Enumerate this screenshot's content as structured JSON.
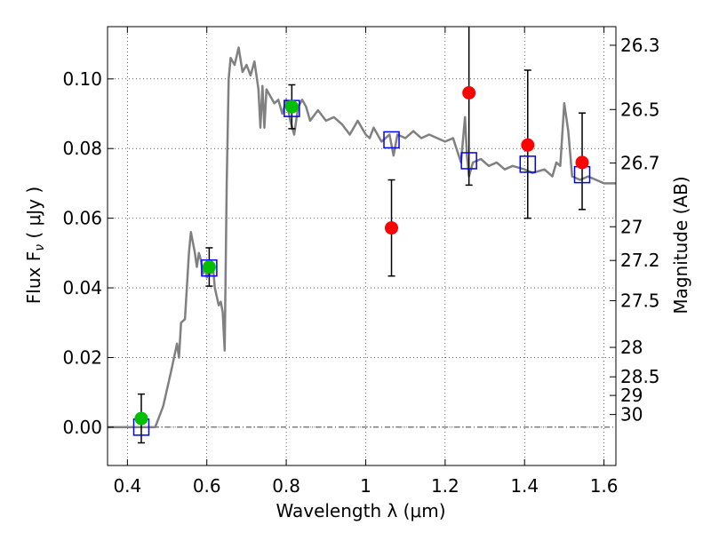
{
  "chart_data": {
    "type": "scatter",
    "xlabel": "Wavelength  λ (μm)",
    "ylabel": "Flux  F",
    "ylabel_sub": "ν",
    "ylabel_unit": " ( μJy )",
    "y2label": "Magnitude (AB)",
    "xlim": [
      0.35,
      1.63
    ],
    "ylim": [
      -0.011,
      0.115
    ],
    "grid": true,
    "x_ticks": [
      0.4,
      0.6,
      0.8,
      1.0,
      1.2,
      1.4,
      1.6
    ],
    "x_tick_labels": [
      "0.4",
      "0.6",
      "0.8",
      "1",
      "1.2",
      "1.4",
      "1.6"
    ],
    "y_ticks": [
      0.0,
      0.02,
      0.04,
      0.06,
      0.08,
      0.1
    ],
    "y_tick_labels": [
      "0.00",
      "0.02",
      "0.04",
      "0.06",
      "0.08",
      "0.10"
    ],
    "mag_ticks": [
      26.3,
      26.5,
      26.7,
      27,
      27.2,
      27.5,
      28,
      28.5,
      29,
      30
    ],
    "mag_tick_labels": [
      "26.3",
      "26.5",
      "26.7",
      "27",
      "27.2",
      "27.5",
      "28",
      "28.5",
      "29",
      "30"
    ],
    "model_sed": {
      "color": "#808080",
      "x": [
        0.35,
        0.47,
        0.49,
        0.51,
        0.525,
        0.53,
        0.535,
        0.545,
        0.555,
        0.56,
        0.57,
        0.575,
        0.58,
        0.585,
        0.59,
        0.595,
        0.6,
        0.605,
        0.61,
        0.615,
        0.62,
        0.63,
        0.635,
        0.64,
        0.645,
        0.65,
        0.655,
        0.66,
        0.67,
        0.68,
        0.69,
        0.7,
        0.71,
        0.72,
        0.73,
        0.735,
        0.74,
        0.745,
        0.75,
        0.76,
        0.77,
        0.78,
        0.79,
        0.8,
        0.81,
        0.82,
        0.83,
        0.84,
        0.85,
        0.86,
        0.88,
        0.9,
        0.92,
        0.94,
        0.96,
        0.98,
        1.0,
        1.01,
        1.02,
        1.04,
        1.06,
        1.07,
        1.08,
        1.1,
        1.12,
        1.14,
        1.16,
        1.18,
        1.2,
        1.22,
        1.24,
        1.25,
        1.255,
        1.26,
        1.27,
        1.29,
        1.31,
        1.33,
        1.35,
        1.37,
        1.4,
        1.42,
        1.45,
        1.47,
        1.48,
        1.49,
        1.5,
        1.51,
        1.52,
        1.54,
        1.56,
        1.58,
        1.6,
        1.63
      ],
      "y": [
        0.0,
        0.0,
        0.006,
        0.016,
        0.024,
        0.02,
        0.03,
        0.031,
        0.05,
        0.056,
        0.05,
        0.046,
        0.05,
        0.048,
        0.044,
        0.046,
        0.043,
        0.045,
        0.044,
        0.047,
        0.04,
        0.035,
        0.036,
        0.033,
        0.022,
        0.07,
        0.1,
        0.106,
        0.104,
        0.109,
        0.102,
        0.104,
        0.101,
        0.105,
        0.097,
        0.086,
        0.098,
        0.086,
        0.097,
        0.095,
        0.093,
        0.094,
        0.09,
        0.094,
        0.088,
        0.084,
        0.092,
        0.094,
        0.092,
        0.088,
        0.091,
        0.088,
        0.089,
        0.087,
        0.084,
        0.088,
        0.084,
        0.083,
        0.086,
        0.082,
        0.084,
        0.078,
        0.084,
        0.083,
        0.085,
        0.083,
        0.084,
        0.083,
        0.082,
        0.083,
        0.076,
        0.089,
        0.078,
        0.072,
        0.076,
        0.077,
        0.075,
        0.076,
        0.074,
        0.075,
        0.074,
        0.073,
        0.074,
        0.072,
        0.076,
        0.075,
        0.093,
        0.085,
        0.072,
        0.071,
        0.072,
        0.071,
        0.07,
        0.07
      ]
    },
    "model_photometry": {
      "marker": "open-square",
      "color": "#0000ff",
      "x": [
        0.435,
        0.606,
        0.814,
        1.065,
        1.26,
        1.408,
        1.545
      ],
      "y": [
        0.0,
        0.0457,
        0.0915,
        0.0825,
        0.0765,
        0.0755,
        0.0725
      ]
    },
    "observed_detections": {
      "marker": "filled-circle",
      "color": "#00bf00",
      "x": [
        0.435,
        0.606,
        0.814
      ],
      "y": [
        0.0025,
        0.046,
        0.092
      ],
      "yerr": [
        0.007,
        0.0055,
        0.0063
      ]
    },
    "observed_nir": {
      "marker": "filled-circle",
      "color": "#ff0000",
      "x": [
        1.065,
        1.26,
        1.408,
        1.545
      ],
      "y": [
        0.0572,
        0.096,
        0.081,
        0.076
      ],
      "yerr_low": [
        0.0138,
        0.0265,
        0.021,
        0.0135
      ],
      "yerr_high": [
        0.0138,
        0.0265,
        0.0215,
        0.0142
      ]
    },
    "zero_line": {
      "y": 0.0,
      "style": "dash-dot"
    }
  }
}
